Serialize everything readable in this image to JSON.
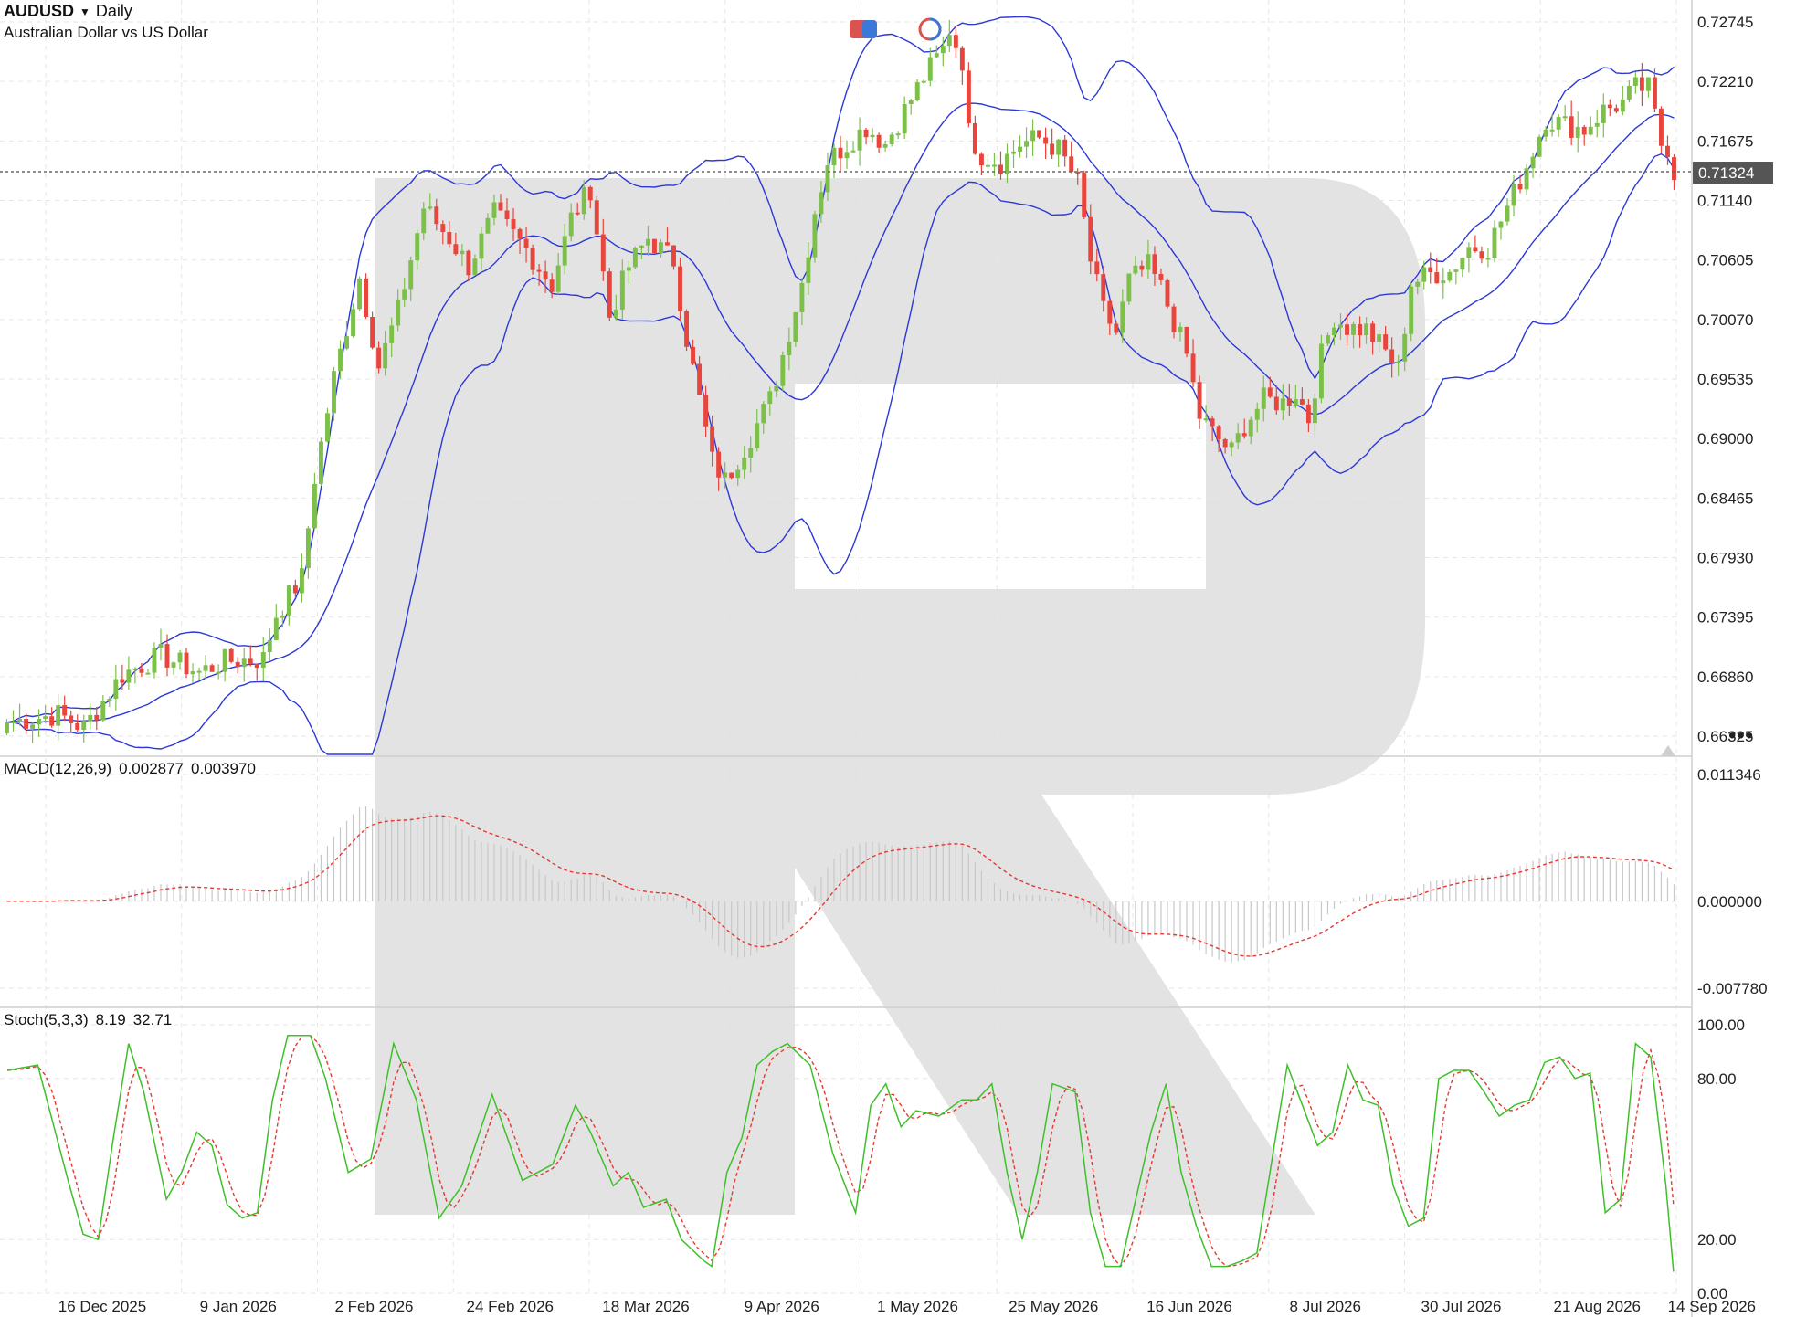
{
  "header": {
    "symbol": "AUDUSD",
    "timeframe": "Daily",
    "description": "Australian Dollar vs US Dollar",
    "dropdown_icon": "caret-down-icon"
  },
  "current_price_label": "0.71324",
  "colors": {
    "bull": "#7cc04a",
    "bear": "#e8453c",
    "bands": "#2c38d8",
    "macd_signal": "#e53935",
    "macd_hist": "#c8c8c8",
    "stoch_k": "#3fbf2a",
    "stoch_d": "#e53935",
    "watermark": "#e3e3e3"
  },
  "indicators": {
    "macd_label": "MACD(12,26,9)",
    "macd_value1": "0.002877",
    "macd_value2": "0.003970",
    "stoch_label": "Stoch(5,3,3)",
    "stoch_value1": "8.19",
    "stoch_value2": "32.71"
  },
  "chart_data": [
    {
      "type": "candlestick",
      "title": "AUDUSD Daily",
      "ylim": [
        0.6595,
        0.7295
      ],
      "y_ticks": [
        "0.72745",
        "0.72210",
        "0.71675",
        "0.71140",
        "0.70605",
        "0.70070",
        "0.69535",
        "0.69000",
        "0.68465",
        "0.67930",
        "0.67395",
        "0.66860",
        "0.66325"
      ],
      "x_ticks": [
        "16 Dec 2025",
        "9 Jan 2026",
        "2 Feb 2026",
        "24 Feb 2026",
        "18 Mar 2026",
        "9 Apr 2026",
        "1 May 2026",
        "25 May 2026",
        "16 Jun 2026",
        "8 Jul 2026",
        "30 Jul 2026",
        "21 Aug 2026",
        "14 Sep 2026"
      ],
      "close_anchors": [
        [
          0,
          0.6645
        ],
        [
          8,
          0.6652
        ],
        [
          12,
          0.664
        ],
        [
          18,
          0.6688
        ],
        [
          24,
          0.6705
        ],
        [
          30,
          0.669
        ],
        [
          34,
          0.67
        ],
        [
          40,
          0.6702
        ],
        [
          42,
          0.6742
        ],
        [
          46,
          0.6775
        ],
        [
          48,
          0.6865
        ],
        [
          51,
          0.6955
        ],
        [
          55,
          0.7045
        ],
        [
          58,
          0.6965
        ],
        [
          61,
          0.7015
        ],
        [
          65,
          0.7108
        ],
        [
          69,
          0.708
        ],
        [
          72,
          0.7055
        ],
        [
          76,
          0.7102
        ],
        [
          81,
          0.707
        ],
        [
          85,
          0.7038
        ],
        [
          88,
          0.7098
        ],
        [
          91,
          0.7125
        ],
        [
          94,
          0.701
        ],
        [
          97,
          0.7055
        ],
        [
          100,
          0.708
        ],
        [
          104,
          0.706
        ],
        [
          106,
          0.699
        ],
        [
          108,
          0.6935
        ],
        [
          110,
          0.688
        ],
        [
          112,
          0.6862
        ],
        [
          116,
          0.6902
        ],
        [
          119,
          0.6935
        ],
        [
          121,
          0.6975
        ],
        [
          124,
          0.704
        ],
        [
          126,
          0.7105
        ],
        [
          128,
          0.715
        ],
        [
          131,
          0.7165
        ],
        [
          134,
          0.718
        ],
        [
          137,
          0.7165
        ],
        [
          140,
          0.7195
        ],
        [
          143,
          0.7225
        ],
        [
          146,
          0.725
        ],
        [
          147,
          0.7268
        ],
        [
          149,
          0.724
        ],
        [
          150,
          0.7175
        ],
        [
          152,
          0.7155
        ],
        [
          155,
          0.7148
        ],
        [
          158,
          0.7165
        ],
        [
          161,
          0.717
        ],
        [
          164,
          0.716
        ],
        [
          167,
          0.713
        ],
        [
          169,
          0.706
        ],
        [
          171,
          0.7015
        ],
        [
          173,
          0.6995
        ],
        [
          175,
          0.7042
        ],
        [
          178,
          0.7055
        ],
        [
          180,
          0.7035
        ],
        [
          184,
          0.6975
        ],
        [
          186,
          0.692
        ],
        [
          188,
          0.6905
        ],
        [
          191,
          0.6888
        ],
        [
          193,
          0.6912
        ],
        [
          196,
          0.6935
        ],
        [
          199,
          0.6932
        ],
        [
          201,
          0.6942
        ],
        [
          203,
          0.6918
        ],
        [
          205,
          0.6975
        ],
        [
          207,
          0.701
        ],
        [
          209,
          0.7
        ],
        [
          212,
          0.6998
        ],
        [
          215,
          0.6978
        ],
        [
          217,
          0.6962
        ],
        [
          219,
          0.704
        ],
        [
          222,
          0.7048
        ],
        [
          225,
          0.705
        ],
        [
          228,
          0.7072
        ],
        [
          231,
          0.7072
        ],
        [
          234,
          0.7108
        ],
        [
          237,
          0.7145
        ],
        [
          240,
          0.7188
        ],
        [
          243,
          0.7182
        ],
        [
          246,
          0.7178
        ],
        [
          249,
          0.7195
        ],
        [
          252,
          0.7202
        ],
        [
          254,
          0.7215
        ],
        [
          256,
          0.7215
        ],
        [
          258,
          0.7165
        ],
        [
          259,
          0.7162
        ],
        [
          260,
          0.7132
        ]
      ],
      "current_price": 0.71324,
      "indicators": [
        "Bollinger Bands"
      ]
    },
    {
      "type": "bar",
      "title": "MACD(12,26,9)",
      "ylim": [
        -0.00778,
        0.011346
      ],
      "y_ticks": [
        "0.011346",
        "0.000000",
        "-0.007780"
      ],
      "last_macd": 0.002877,
      "last_signal": 0.00397
    },
    {
      "type": "line",
      "title": "Stoch(5,3,3)",
      "ylim": [
        0,
        100
      ],
      "y_ticks": [
        "100.00",
        "80.00",
        "20.00",
        "0.00"
      ],
      "k_anchors": [
        [
          0,
          83
        ],
        [
          4,
          85
        ],
        [
          8,
          42
        ],
        [
          10,
          22
        ],
        [
          12,
          20
        ],
        [
          14,
          58
        ],
        [
          16,
          93
        ],
        [
          18,
          75
        ],
        [
          21,
          35
        ],
        [
          23,
          45
        ],
        [
          25,
          60
        ],
        [
          27,
          55
        ],
        [
          29,
          33
        ],
        [
          31,
          28
        ],
        [
          33,
          30
        ],
        [
          35,
          72
        ],
        [
          37,
          96
        ],
        [
          40,
          96
        ],
        [
          42,
          80
        ],
        [
          45,
          45
        ],
        [
          48,
          50
        ],
        [
          51,
          93
        ],
        [
          54,
          72
        ],
        [
          57,
          28
        ],
        [
          60,
          40
        ],
        [
          64,
          74
        ],
        [
          68,
          42
        ],
        [
          70,
          45
        ],
        [
          72,
          48
        ],
        [
          75,
          70
        ],
        [
          77,
          60
        ],
        [
          80,
          40
        ],
        [
          82,
          45
        ],
        [
          84,
          32
        ],
        [
          87,
          35
        ],
        [
          89,
          20
        ],
        [
          92,
          12
        ],
        [
          93,
          10
        ],
        [
          95,
          45
        ],
        [
          97,
          58
        ],
        [
          99,
          85
        ],
        [
          101,
          90
        ],
        [
          103,
          93
        ],
        [
          106,
          85
        ],
        [
          109,
          52
        ],
        [
          112,
          30
        ],
        [
          114,
          70
        ],
        [
          116,
          78
        ],
        [
          118,
          62
        ],
        [
          120,
          68
        ],
        [
          123,
          66
        ],
        [
          126,
          72
        ],
        [
          128,
          72
        ],
        [
          130,
          78
        ],
        [
          132,
          45
        ],
        [
          134,
          20
        ],
        [
          136,
          45
        ],
        [
          138,
          78
        ],
        [
          141,
          75
        ],
        [
          143,
          30
        ],
        [
          145,
          10
        ],
        [
          147,
          10
        ],
        [
          149,
          35
        ],
        [
          151,
          60
        ],
        [
          153,
          78
        ],
        [
          155,
          45
        ],
        [
          157,
          25
        ],
        [
          159,
          10
        ],
        [
          161,
          10
        ],
        [
          163,
          12
        ],
        [
          165,
          15
        ],
        [
          167,
          50
        ],
        [
          169,
          85
        ],
        [
          171,
          70
        ],
        [
          173,
          55
        ],
        [
          175,
          60
        ],
        [
          177,
          85
        ],
        [
          179,
          72
        ],
        [
          181,
          70
        ],
        [
          183,
          40
        ],
        [
          185,
          25
        ],
        [
          187,
          28
        ],
        [
          189,
          80
        ],
        [
          191,
          83
        ],
        [
          193,
          83
        ],
        [
          195,
          75
        ],
        [
          197,
          66
        ],
        [
          199,
          70
        ],
        [
          201,
          72
        ],
        [
          203,
          86
        ],
        [
          205,
          88
        ],
        [
          207,
          80
        ],
        [
          209,
          82
        ],
        [
          211,
          30
        ],
        [
          213,
          35
        ],
        [
          215,
          93
        ],
        [
          217,
          88
        ],
        [
          219,
          40
        ],
        [
          220,
          8
        ]
      ],
      "last_k": 8.19,
      "last_d": 32.71
    }
  ]
}
